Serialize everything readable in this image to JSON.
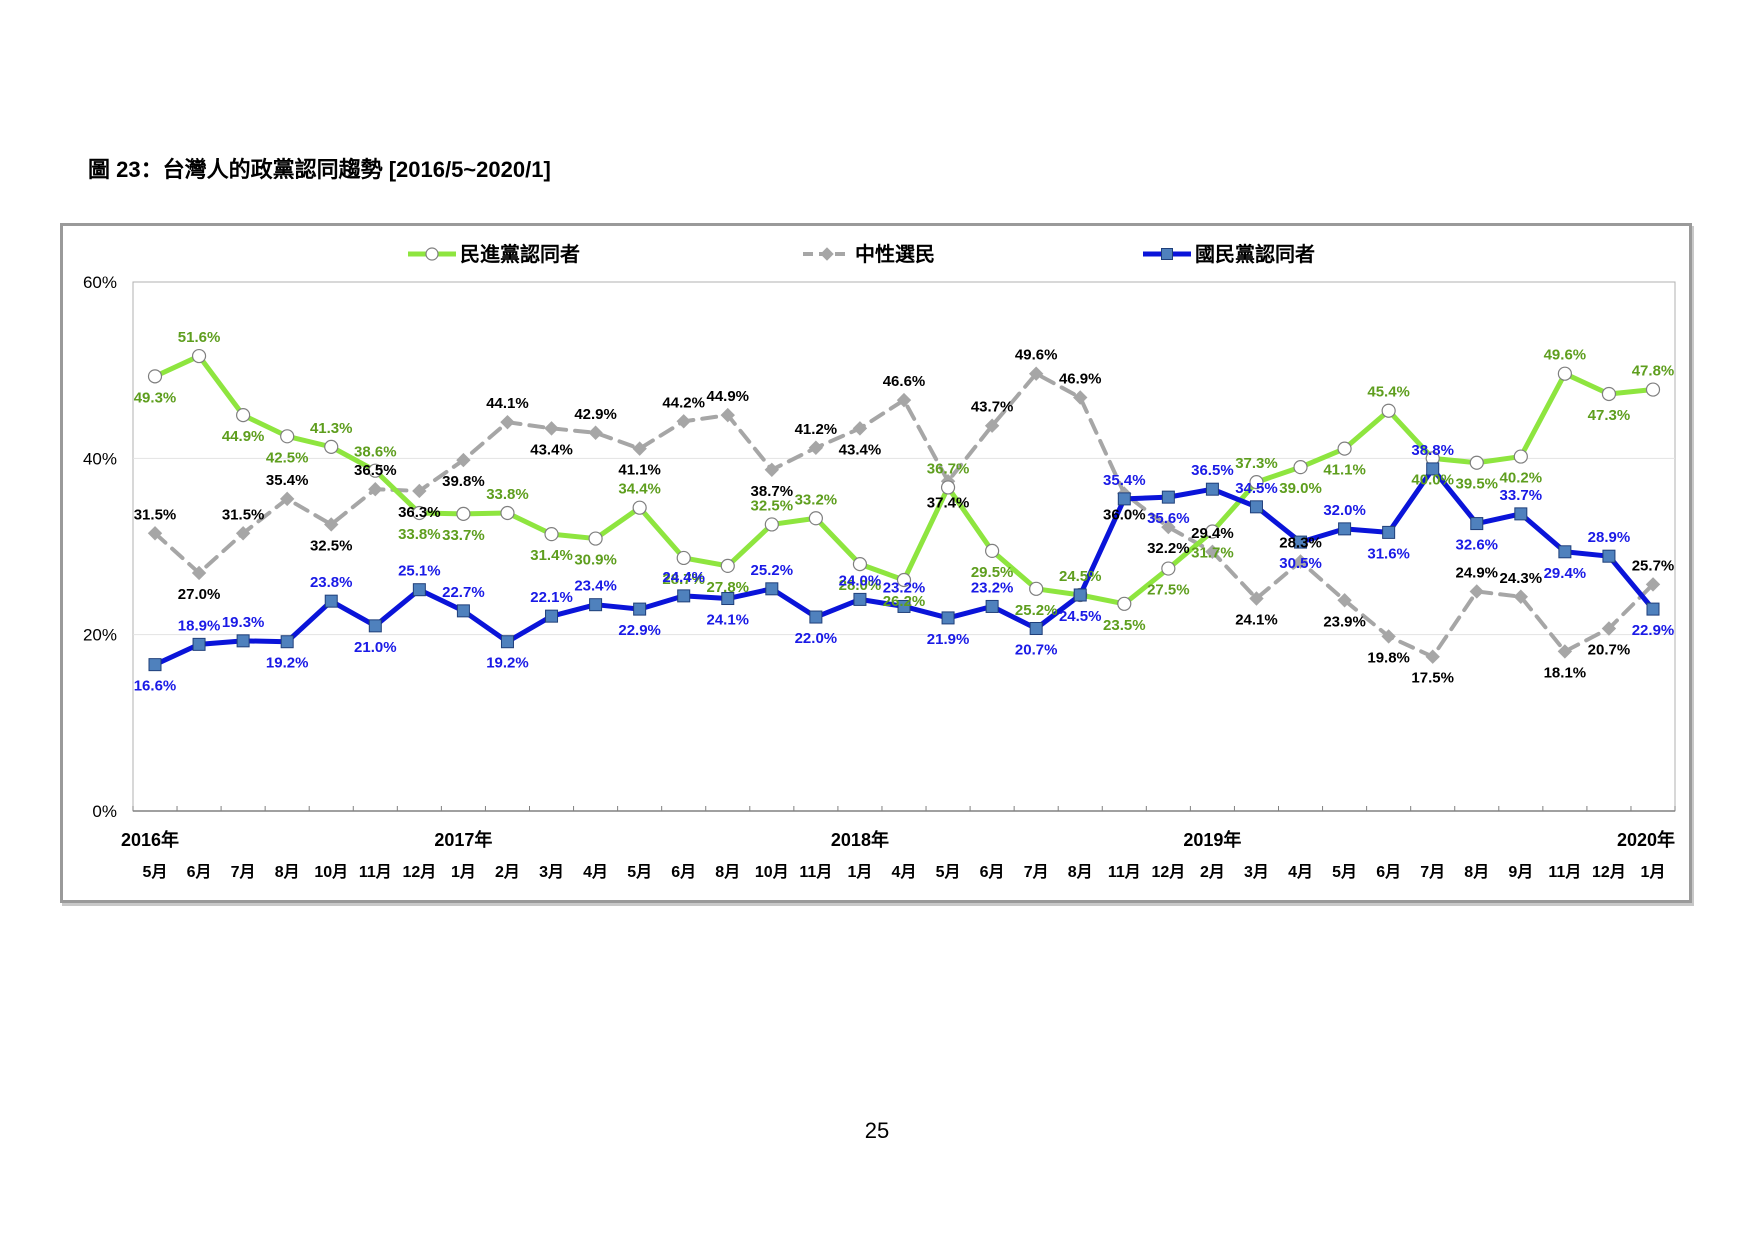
{
  "page": {
    "title": "圖 23：台灣人的政黨認同趨勢  [2016/5~2020/1]",
    "page_number": "25"
  },
  "colors": {
    "dpp": "#8ee53f",
    "dpp_label": "#5e9e1e",
    "neutral": "#a6a6a6",
    "neutral_label": "#000000",
    "kmt": "#0a14d9",
    "kmt_label": "#1a1ae6",
    "kmt_marker": "#4f81bd"
  },
  "chart_data": {
    "type": "line",
    "ylim": [
      0,
      60
    ],
    "yticks": [
      "0%",
      "20%",
      "40%",
      "60%"
    ],
    "grid": "horizontal",
    "legend": "top",
    "x": [
      "5月",
      "6月",
      "7月",
      "8月",
      "10月",
      "11月",
      "12月",
      "1月",
      "2月",
      "3月",
      "4月",
      "5月",
      "6月",
      "8月",
      "10月",
      "11月",
      "1月",
      "4月",
      "5月",
      "6月",
      "7月",
      "8月",
      "11月",
      "12月",
      "2月",
      "3月",
      "4月",
      "5月",
      "6月",
      "7月",
      "8月",
      "9月",
      "11月",
      "12月",
      "1月"
    ],
    "years": [
      {
        "label": "2016年",
        "index": 0
      },
      {
        "label": "2017年",
        "index": 7
      },
      {
        "label": "2018年",
        "index": 16
      },
      {
        "label": "2019年",
        "index": 24
      },
      {
        "label": "2020年",
        "index": 34
      }
    ],
    "series": [
      {
        "name": "民進黨認同者",
        "values": [
          49.3,
          51.6,
          44.9,
          42.5,
          41.3,
          38.6,
          33.8,
          33.7,
          33.8,
          31.4,
          30.9,
          34.4,
          28.7,
          27.8,
          32.5,
          33.2,
          28.0,
          26.2,
          36.7,
          29.5,
          25.2,
          24.5,
          23.5,
          27.5,
          31.7,
          37.3,
          39.0,
          41.1,
          45.4,
          40.0,
          39.5,
          40.2,
          49.6,
          47.3,
          47.8
        ],
        "labels": [
          "49.3%",
          "51.6%",
          "44.9%",
          "42.5%",
          "41.3%",
          "38.6%",
          "33.8%",
          "33.7%",
          "33.8%",
          "31.4%",
          "30.9%",
          "34.4%",
          "28.7%",
          "27.8%",
          "32.5%",
          "33.2%",
          "28.0%",
          "26.2%",
          "36.7%",
          "29.5%",
          "25.2%",
          "24.5%",
          "23.5%",
          "27.5%",
          "31.7%",
          "37.3%",
          "39.0%",
          "41.1%",
          "45.4%",
          "40.0%",
          "39.5%",
          "40.2%",
          "49.6%",
          "47.3%",
          "47.8%"
        ]
      },
      {
        "name": "中性選民",
        "values": [
          31.5,
          27.0,
          31.5,
          35.4,
          32.5,
          36.5,
          36.3,
          39.8,
          44.1,
          43.4,
          42.9,
          41.1,
          44.2,
          44.9,
          38.7,
          41.2,
          43.4,
          46.6,
          37.4,
          43.7,
          49.6,
          46.9,
          36.0,
          32.2,
          29.4,
          24.1,
          28.3,
          23.9,
          19.8,
          17.5,
          24.9,
          24.3,
          18.1,
          20.7,
          25.7
        ],
        "labels": [
          "31.5%",
          "27.0%",
          "31.5%",
          "35.4%",
          "32.5%",
          "36.5%",
          "36.3%",
          "39.8%",
          "44.1%",
          "43.4%",
          "42.9%",
          "41.1%",
          "44.2%",
          "44.9%",
          "38.7%",
          "41.2%",
          "43.4%",
          "46.6%",
          "37.4%",
          "43.7%",
          "49.6%",
          "46.9%",
          "36.0%",
          "32.2%",
          "29.4%",
          "24.1%",
          "28.3%",
          "23.9%",
          "19.8%",
          "17.5%",
          "24.9%",
          "24.3%",
          "18.1%",
          "20.7%",
          "25.7%"
        ]
      },
      {
        "name": "國民黨認同者",
        "values": [
          16.6,
          18.9,
          19.3,
          19.2,
          23.8,
          21.0,
          25.1,
          22.7,
          19.2,
          22.1,
          23.4,
          22.9,
          24.4,
          24.1,
          25.2,
          22.0,
          24.0,
          23.2,
          21.9,
          23.2,
          20.7,
          24.5,
          35.4,
          35.6,
          36.5,
          34.5,
          30.5,
          32.0,
          31.6,
          38.8,
          32.6,
          33.7,
          29.4,
          28.9,
          22.9
        ],
        "labels": [
          "16.6%",
          "18.9%",
          "19.3%",
          "19.2%",
          "23.8%",
          "21.0%",
          "25.1%",
          "22.7%",
          "19.2%",
          "22.1%",
          "23.4%",
          "22.9%",
          "24.4%",
          "24.1%",
          "25.2%",
          "22.0%",
          "24.0%",
          "23.2%",
          "21.9%",
          "23.2%",
          "20.7%",
          "24.5%",
          "35.4%",
          "35.6%",
          "36.5%",
          "34.5%",
          "30.5%",
          "32.0%",
          "31.6%",
          "38.8%",
          "32.6%",
          "33.7%",
          "29.4%",
          "28.9%",
          "22.9%"
        ]
      }
    ]
  }
}
